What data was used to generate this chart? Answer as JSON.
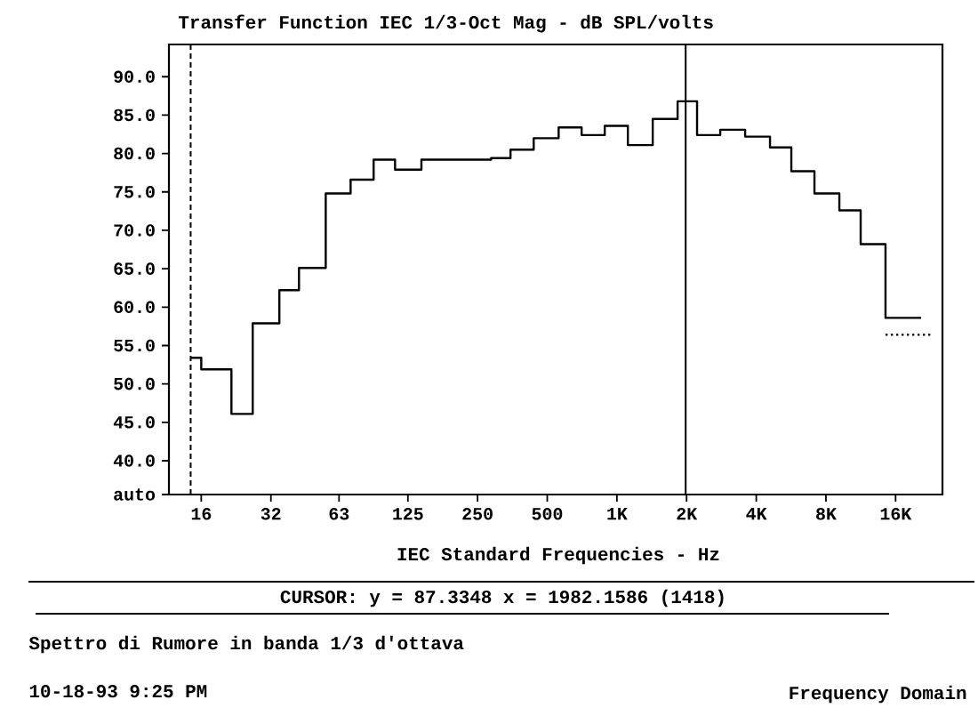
{
  "chart_data": {
    "type": "step",
    "title": "Transfer Function IEC 1/3-Oct Mag - dB SPL/volts",
    "xlabel": "IEC Standard Frequencies - Hz",
    "log": "x",
    "x": [
      14.4,
      16,
      21.6,
      26.7,
      34.8,
      42.3,
      55.2,
      70.7,
      88.9,
      110,
      143,
      180,
      227,
      286,
      347,
      437,
      560,
      704,
      886,
      1115,
      1428,
      1829,
      2220,
      2795,
      3581,
      4586,
      5670,
      7136,
      9141,
      11300,
      14470,
      20620
    ],
    "series": [
      {
        "color": "#000000",
        "values": [
          53.4,
          51.9,
          46.1,
          57.9,
          62.2,
          65.1,
          74.8,
          76.6,
          79.2,
          77.9,
          79.2,
          79.2,
          79.2,
          79.4,
          80.5,
          82.0,
          83.4,
          82.4,
          83.6,
          81.1,
          84.5,
          86.8,
          82.4,
          83.1,
          82.2,
          80.8,
          77.7,
          74.8,
          72.6,
          68.2,
          58.6,
          58.6
        ]
      },
      {
        "type": "line",
        "color": "#000000",
        "line_style": "dotted",
        "x": [
          14470,
          23300
        ],
        "values": [
          56.4,
          56.4
        ]
      }
    ],
    "xlim": [
      11.6,
      25500
    ],
    "ylim": [
      35.6,
      94.2
    ],
    "xticks": [
      {
        "value": 16,
        "label": "16"
      },
      {
        "value": 32,
        "label": "32"
      },
      {
        "value": 63,
        "label": "63"
      },
      {
        "value": 125,
        "label": "125"
      },
      {
        "value": 250,
        "label": "250"
      },
      {
        "value": 500,
        "label": "500"
      },
      {
        "value": 1000,
        "label": "1K"
      },
      {
        "value": 2000,
        "label": "2K"
      },
      {
        "value": 4000,
        "label": "4K"
      },
      {
        "value": 8000,
        "label": "8K"
      },
      {
        "value": 16000,
        "label": "16K"
      }
    ],
    "yticks": [
      {
        "value": 35.6,
        "label": "auto"
      },
      {
        "value": 40,
        "label": "40.0"
      },
      {
        "value": 45,
        "label": "45.0"
      },
      {
        "value": 50,
        "label": "50.0"
      },
      {
        "value": 55,
        "label": "55.0"
      },
      {
        "value": 60,
        "label": "60.0"
      },
      {
        "value": 65,
        "label": "65.0"
      },
      {
        "value": 70,
        "label": "70.0"
      },
      {
        "value": 75,
        "label": "75.0"
      },
      {
        "value": 80,
        "label": "80.0"
      },
      {
        "value": 85,
        "label": "85.0"
      },
      {
        "value": 90,
        "label": "90.0"
      }
    ],
    "ref_lines": [
      {
        "axis": "x",
        "value": 14.4,
        "line_style": "dashed"
      },
      {
        "axis": "x",
        "value": 1982.1586
      }
    ],
    "annotations": [
      "CURSOR: y = 87.3348 x = 1982.1586 (1418)",
      "Spettro di Rumore in banda 1/3 d'ottava",
      "10-18-93 9:25 PM",
      "Frequency Domain"
    ]
  }
}
